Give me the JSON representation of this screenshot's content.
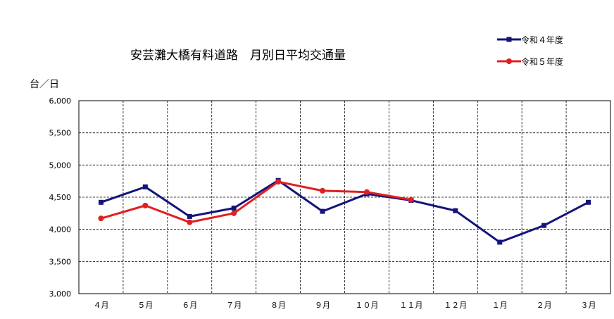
{
  "chart_data": {
    "type": "line",
    "title": "安芸灘大橋有料道路　月別日平均交通量",
    "ylabel": "台／日",
    "xlabel": "",
    "categories": [
      "４月",
      "５月",
      "６月",
      "７月",
      "８月",
      "９月",
      "１０月",
      "１１月",
      "１２月",
      "１月",
      "２月",
      "３月"
    ],
    "ylim": [
      3000,
      6000
    ],
    "yticks": [
      3000,
      3500,
      4000,
      4500,
      5000,
      5500,
      6000
    ],
    "ytick_labels": [
      "3,000",
      "3,500",
      "4,000",
      "4,500",
      "5,000",
      "5,500",
      "6,000"
    ],
    "grid": true,
    "legend_position": "top-right",
    "series": [
      {
        "name": "令和４年度",
        "color": "#14147a",
        "marker": "square",
        "values": [
          4420,
          4660,
          4200,
          4330,
          4760,
          4280,
          4550,
          4450,
          4290,
          3800,
          4060,
          4420
        ]
      },
      {
        "name": "令和５年度",
        "color": "#e02020",
        "marker": "circle",
        "values": [
          4170,
          4370,
          4110,
          4250,
          4740,
          4600,
          4580,
          4460,
          null,
          null,
          null,
          null
        ]
      }
    ]
  }
}
